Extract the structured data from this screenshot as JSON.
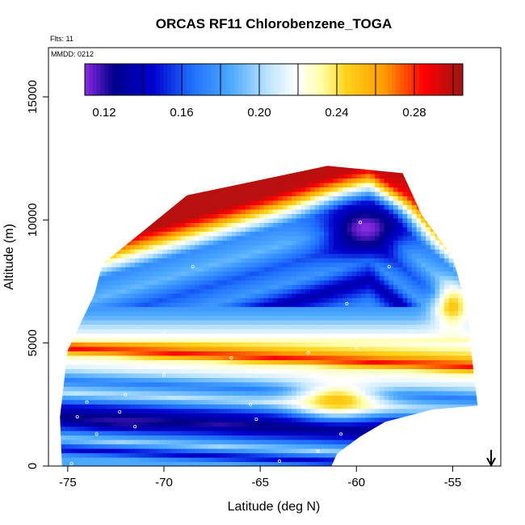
{
  "chart_data": {
    "type": "heatmap",
    "title": "ORCAS RF11 Chlorobenzene_TOGA",
    "flights_label": "Flts: 11",
    "date_label": "MMDD: 0212",
    "xlabel": "Latitude (deg N)",
    "ylabel": "Altitude (m)",
    "xlim": [
      -76.0,
      -52.5
    ],
    "ylim": [
      0,
      17000
    ],
    "x_ticks": [
      -75,
      -70,
      -65,
      -60,
      -55
    ],
    "x_tick_labels": [
      "-75",
      "-70",
      "-65",
      "-60",
      "-55"
    ],
    "y_ticks": [
      0,
      5000,
      10000,
      15000
    ],
    "y_tick_labels": [
      "0",
      "5000",
      "10000",
      "15000"
    ],
    "colorbar": {
      "range": [
        0.11,
        0.305
      ],
      "ticks": [
        0.12,
        0.16,
        0.2,
        0.24,
        0.28
      ],
      "tick_labels": [
        "0.12",
        "0.16",
        "0.20",
        "0.24",
        "0.28"
      ],
      "stops": [
        {
          "v": 0.11,
          "c": "#8a2be2"
        },
        {
          "v": 0.125,
          "c": "#00008b"
        },
        {
          "v": 0.145,
          "c": "#0000cd"
        },
        {
          "v": 0.165,
          "c": "#1e6fff"
        },
        {
          "v": 0.185,
          "c": "#4aa8ff"
        },
        {
          "v": 0.205,
          "c": "#bfe6ff"
        },
        {
          "v": 0.22,
          "c": "#ffffff"
        },
        {
          "v": 0.232,
          "c": "#ffffa8"
        },
        {
          "v": 0.245,
          "c": "#ffd21a"
        },
        {
          "v": 0.265,
          "c": "#ff9a00"
        },
        {
          "v": 0.285,
          "c": "#ff0000"
        },
        {
          "v": 0.305,
          "c": "#a01414"
        }
      ]
    },
    "field_polygon": [
      [
        -75.3,
        0
      ],
      [
        -61.3,
        0
      ],
      [
        -61.0,
        500
      ],
      [
        -59.8,
        1200
      ],
      [
        -58.5,
        1800
      ],
      [
        -56.0,
        2300
      ],
      [
        -53.7,
        2450
      ],
      [
        -54.0,
        4400
      ],
      [
        -54.3,
        6500
      ],
      [
        -55.0,
        8500
      ],
      [
        -56.6,
        10200
      ],
      [
        -57.6,
        11900
      ],
      [
        -61.5,
        12200
      ],
      [
        -68.8,
        11000
      ],
      [
        -73.2,
        8200
      ],
      [
        -73.6,
        7000
      ],
      [
        -75.0,
        4700
      ],
      [
        -75.4,
        2000
      ]
    ],
    "field_bands": [
      {
        "alt": 0,
        "value": 0.185
      },
      {
        "alt": 300,
        "value": 0.14
      },
      {
        "alt": 700,
        "value": 0.2
      },
      {
        "alt": 1100,
        "value": 0.16
      },
      {
        "alt": 1600,
        "value": 0.12
      },
      {
        "alt": 2100,
        "value": 0.15
      },
      {
        "alt": 2600,
        "value": 0.205
      },
      {
        "alt": 3100,
        "value": 0.17
      },
      {
        "alt": 3600,
        "value": 0.21
      },
      {
        "alt": 4100,
        "value": 0.23
      },
      {
        "alt": 4400,
        "value": 0.285
      },
      {
        "alt": 4800,
        "value": 0.245
      },
      {
        "alt": 5400,
        "value": 0.215
      },
      {
        "alt": 6000,
        "value": 0.19
      },
      {
        "alt": 6800,
        "value": 0.17
      },
      {
        "alt": 7600,
        "value": 0.135
      },
      {
        "alt": 8400,
        "value": 0.18
      },
      {
        "alt": 9200,
        "value": 0.16
      },
      {
        "alt": 10000,
        "value": 0.19
      },
      {
        "alt": 10800,
        "value": 0.175
      },
      {
        "alt": 11400,
        "value": 0.23
      },
      {
        "alt": 11800,
        "value": 0.27
      },
      {
        "alt": 12200,
        "value": 0.3
      }
    ],
    "field_features": [
      {
        "lat": -59.5,
        "alt": 9700,
        "slat": 2.2,
        "salt": 1100,
        "value": 0.11
      },
      {
        "lat": -61.0,
        "alt": 2700,
        "slat": 2.2,
        "salt": 700,
        "value": 0.25
      },
      {
        "lat": -72.0,
        "alt": 1800,
        "slat": 2.0,
        "salt": 250,
        "value": 0.12
      },
      {
        "lat": -55.0,
        "alt": 6500,
        "slat": 1.0,
        "salt": 900,
        "value": 0.25
      }
    ],
    "sample_points": [
      [
        -74.8,
        100
      ],
      [
        -73.5,
        1300
      ],
      [
        -74.5,
        2000
      ],
      [
        -74.0,
        2600
      ],
      [
        -72.0,
        2900
      ],
      [
        -71.5,
        1600
      ],
      [
        -70.0,
        3700
      ],
      [
        -66.5,
        4400
      ],
      [
        -65.5,
        2500
      ],
      [
        -65.2,
        1900
      ],
      [
        -64.0,
        200
      ],
      [
        -62.0,
        600
      ],
      [
        -62.5,
        4600
      ],
      [
        -60.5,
        3700
      ],
      [
        -60.8,
        1300
      ],
      [
        -60.0,
        4800
      ],
      [
        -59.8,
        9900
      ],
      [
        -58.3,
        8100
      ],
      [
        -60.5,
        6600
      ],
      [
        -73.3,
        8200
      ],
      [
        -68.5,
        8100
      ],
      [
        -70.0,
        5400
      ],
      [
        -53.5,
        2500
      ],
      [
        -72.3,
        2200
      ]
    ],
    "direction_arrow_lat": -53.0
  }
}
